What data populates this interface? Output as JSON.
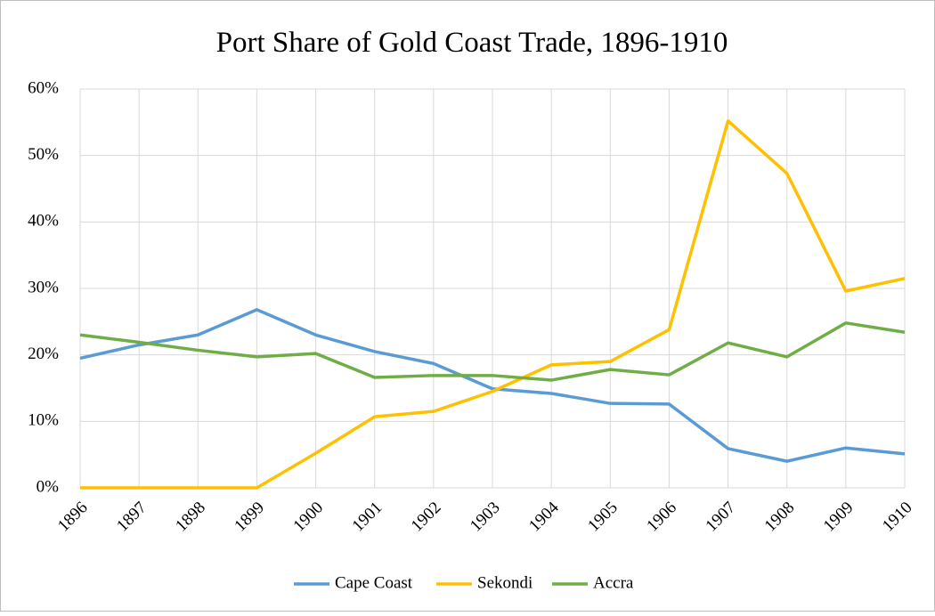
{
  "chart_data": {
    "type": "line",
    "title": "Port Share of Gold Coast Trade, 1896-1910",
    "categories": [
      "1896",
      "1897",
      "1898",
      "1899",
      "1900",
      "1901",
      "1902",
      "1903",
      "1904",
      "1905",
      "1906",
      "1907",
      "1908",
      "1909",
      "1910"
    ],
    "series": [
      {
        "name": "Cape Coast",
        "color": "#5b9bd5",
        "values": [
          19.5,
          21.5,
          23.0,
          26.8,
          23.0,
          20.5,
          18.7,
          14.9,
          14.2,
          12.7,
          12.6,
          5.9,
          4.0,
          6.0,
          5.1
        ]
      },
      {
        "name": "Sekondi",
        "color": "#ffc000",
        "values": [
          0,
          0,
          0,
          0,
          5.2,
          10.7,
          11.5,
          14.5,
          18.5,
          19.0,
          23.8,
          55.2,
          47.3,
          29.6,
          31.5
        ]
      },
      {
        "name": "Accra",
        "color": "#70ad47",
        "values": [
          23.0,
          21.9,
          20.7,
          19.7,
          20.2,
          16.6,
          16.9,
          16.9,
          16.2,
          17.8,
          17.0,
          21.8,
          19.7,
          24.8,
          23.4
        ]
      }
    ],
    "ylim": [
      0,
      60
    ],
    "yticks": [
      {
        "value": 0,
        "label": "0%"
      },
      {
        "value": 10,
        "label": "10%"
      },
      {
        "value": 20,
        "label": "20%"
      },
      {
        "value": 30,
        "label": "30%"
      },
      {
        "value": 40,
        "label": "40%"
      },
      {
        "value": 50,
        "label": "50%"
      },
      {
        "value": 60,
        "label": "60%"
      }
    ],
    "grid": true,
    "legend": "bottom"
  }
}
